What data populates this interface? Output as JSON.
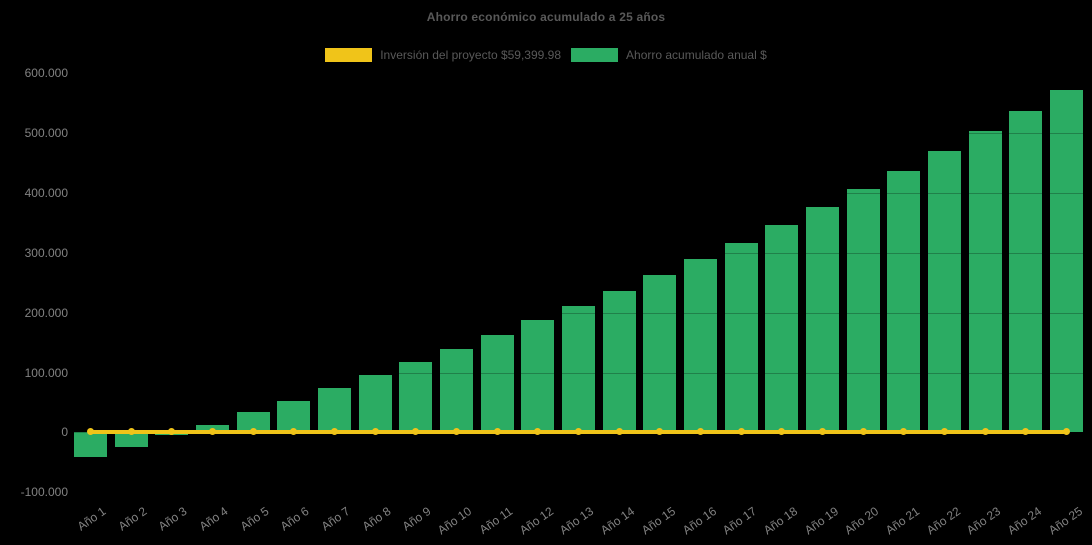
{
  "title": "Ahorro económico acumulado a 25 años",
  "colors": {
    "background": "#000000",
    "bar_green": "#2BAC63",
    "line_yellow": "#F0C419",
    "title_text": "#595959",
    "tick_text": "#828282"
  },
  "legend": {
    "items": [
      {
        "id": "investment",
        "label": "Inversión del proyecto $59,399.98",
        "color": "#F0C419"
      },
      {
        "id": "savings",
        "label": "Ahorro acumulado anual $",
        "color": "#2BAC63"
      }
    ]
  },
  "chart_data": {
    "type": "bar",
    "title": "Ahorro económico acumulado a 25 años",
    "categories": [
      "Año 1",
      "Año 2",
      "Año 3",
      "Año 4",
      "Año 5",
      "Año 6",
      "Año 7",
      "Año 8",
      "Año 9",
      "Año 10",
      "Año 11",
      "Año 12",
      "Año 13",
      "Año 14",
      "Año 15",
      "Año 16",
      "Año 17",
      "Año 18",
      "Año 19",
      "Año 20",
      "Año 21",
      "Año 22",
      "Año 23",
      "Año 24",
      "Año 25"
    ],
    "series": [
      {
        "name": "Ahorro acumulado anual $",
        "type": "bar",
        "color": "#2BAC63",
        "values": [
          -41000,
          -24000,
          -5000,
          13000,
          34000,
          53000,
          74000,
          96000,
          117000,
          140000,
          162000,
          187000,
          211000,
          236000,
          263000,
          290000,
          317000,
          346000,
          377000,
          406000,
          437000,
          469000,
          503000,
          537000,
          572000
        ]
      },
      {
        "name": "Inversión del proyecto $59,399.98",
        "type": "line",
        "color": "#F0C419",
        "values": [
          0,
          0,
          0,
          0,
          0,
          0,
          0,
          0,
          0,
          0,
          0,
          0,
          0,
          0,
          0,
          0,
          0,
          0,
          0,
          0,
          0,
          0,
          0,
          0,
          0
        ],
        "note_label_amount": "$59,399.98"
      }
    ],
    "y_axis": {
      "min": -100000,
      "max": 600000,
      "step": 100000,
      "tick_labels": [
        "600.000",
        "500.000",
        "400.000",
        "300.000",
        "200.000",
        "100.000",
        "0",
        "-100.000"
      ],
      "tick_values": [
        600000,
        500000,
        400000,
        300000,
        200000,
        100000,
        0,
        -100000
      ]
    },
    "x_axis": {
      "label_rotation_deg": -35
    },
    "grid": "none-visible (black background, faint dark gridlines over bars)",
    "legend_position": "top-center"
  }
}
